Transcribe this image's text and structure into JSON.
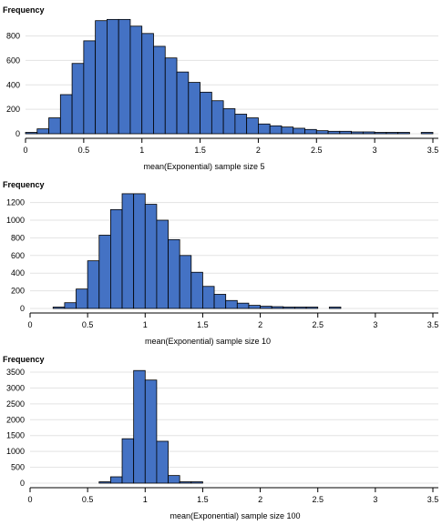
{
  "chart_data": [
    {
      "type": "bar",
      "ylabel": "Frequency",
      "xlabel": "mean(Exponential) sample size 5",
      "bin_width": 0.1,
      "x_start": 0.0,
      "values": [
        5,
        40,
        130,
        320,
        575,
        760,
        925,
        935,
        935,
        880,
        820,
        715,
        620,
        505,
        420,
        340,
        270,
        205,
        160,
        130,
        80,
        65,
        55,
        45,
        35,
        25,
        20,
        20,
        15,
        15,
        10,
        10,
        5,
        0,
        5
      ],
      "xlim": [
        0,
        3.5
      ],
      "ylim": [
        0,
        960
      ],
      "xticks": [
        "0",
        "0.5",
        "1",
        "1.5",
        "2",
        "2.5",
        "3",
        "3.5"
      ],
      "yticks": [
        "0",
        "200",
        "400",
        "600",
        "800"
      ],
      "ytick_values": [
        0,
        200,
        400,
        600,
        800
      ],
      "grid": true,
      "color": "#4472c4"
    },
    {
      "type": "bar",
      "ylabel": "Frequency",
      "xlabel": "mean(Exponential) sample size 10",
      "bin_width": 0.1,
      "x_start": 0.2,
      "values": [
        5,
        65,
        220,
        540,
        830,
        1120,
        1300,
        1300,
        1180,
        1000,
        780,
        600,
        410,
        250,
        160,
        90,
        60,
        35,
        25,
        20,
        15,
        10,
        5,
        0,
        5
      ],
      "xlim": [
        0,
        3.5
      ],
      "ylim": [
        0,
        1330
      ],
      "xticks": [
        "0",
        "0.5",
        "1",
        "1.5",
        "2",
        "2.5",
        "3",
        "3.5"
      ],
      "yticks": [
        "0",
        "200",
        "400",
        "600",
        "800",
        "1000",
        "1200"
      ],
      "ytick_values": [
        0,
        200,
        400,
        600,
        800,
        1000,
        1200
      ],
      "grid": true,
      "color": "#4472c4"
    },
    {
      "type": "bar",
      "ylabel": "Frequency",
      "xlabel": "mean(Exponential) sample size 100",
      "bin_width": 0.1,
      "x_start": 0.6,
      "values": [
        15,
        200,
        1400,
        3550,
        3250,
        1320,
        240,
        15,
        5
      ],
      "xlim": [
        0,
        3.5
      ],
      "ylim": [
        0,
        3700
      ],
      "xticks": [
        "0",
        "0.5",
        "1",
        "1.5",
        "2",
        "2.5",
        "3",
        "3.5"
      ],
      "yticks": [
        "0",
        "500",
        "1000",
        "1500",
        "2000",
        "2500",
        "3000",
        "3500"
      ],
      "ytick_values": [
        0,
        500,
        1000,
        1500,
        2000,
        2500,
        3000,
        3500
      ],
      "grid": true,
      "color": "#4472c4"
    }
  ]
}
